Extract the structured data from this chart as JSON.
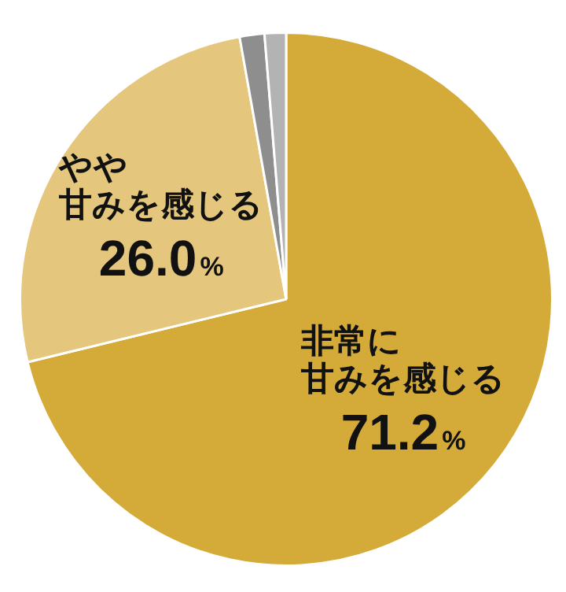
{
  "chart_data": {
    "type": "pie",
    "categories": [
      "非常に甘みを感じる",
      "やや甘みを感じる",
      null,
      null
    ],
    "values": [
      71.2,
      26.0,
      1.5,
      1.3
    ],
    "colors": [
      "#d4aa38",
      "#e4c77c",
      "#8e8e8e",
      "#b3b3b3"
    ],
    "value_labels": [
      "71.2%",
      "26.0%",
      null,
      null
    ],
    "legend": false
  }
}
